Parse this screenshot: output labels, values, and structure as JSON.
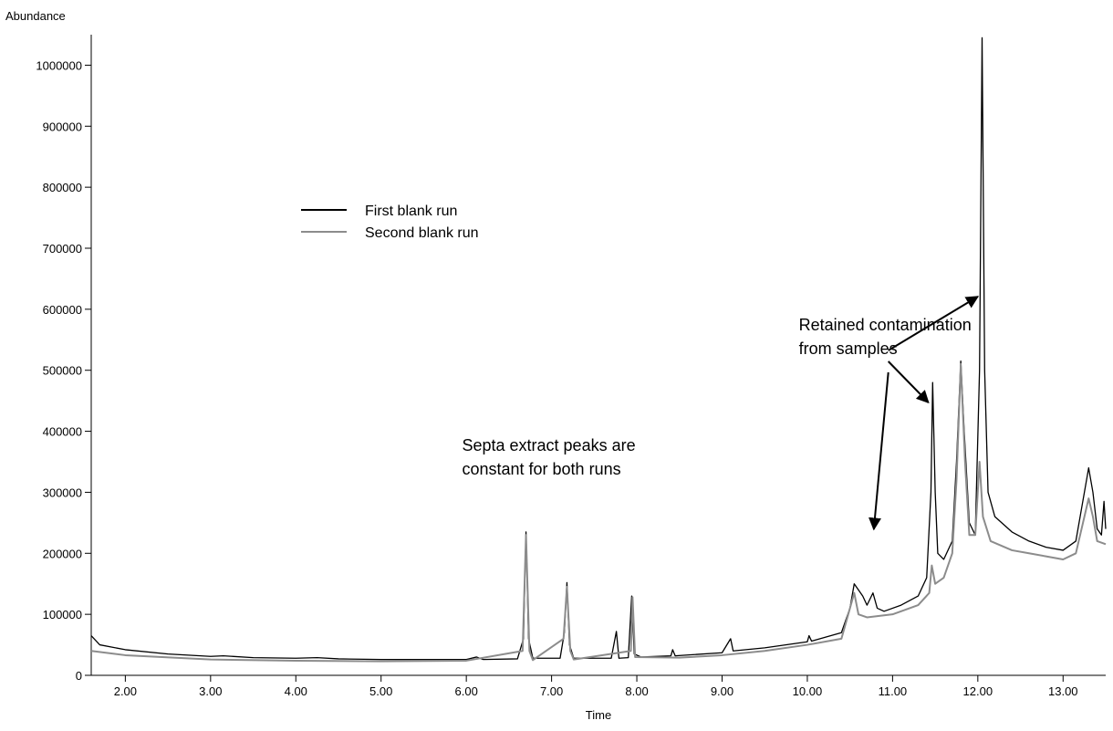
{
  "chart_data": {
    "type": "line",
    "y_label": "Abundance",
    "x_label": "Time",
    "xlim": [
      1.6,
      13.5
    ],
    "ylim": [
      0,
      1050000
    ],
    "xticks": [
      {
        "value": 2,
        "label": "2.00"
      },
      {
        "value": 3,
        "label": "3.00"
      },
      {
        "value": 4,
        "label": "4.00"
      },
      {
        "value": 5,
        "label": "5.00"
      },
      {
        "value": 6,
        "label": "6.00"
      },
      {
        "value": 7,
        "label": "7.00"
      },
      {
        "value": 8,
        "label": "8.00"
      },
      {
        "value": 9,
        "label": "9.00"
      },
      {
        "value": 10,
        "label": "10.00"
      },
      {
        "value": 11,
        "label": "11.00"
      },
      {
        "value": 12,
        "label": "12.00"
      },
      {
        "value": 13,
        "label": "13.00"
      }
    ],
    "yticks": [
      0,
      100000,
      200000,
      300000,
      400000,
      500000,
      600000,
      700000,
      800000,
      900000,
      1000000
    ],
    "grid": false,
    "annotations": [
      [
        "Retained contamination",
        "from samples"
      ],
      [
        "Septa extract peaks are",
        "constant for both runs"
      ]
    ],
    "series": [
      {
        "name": "First blank run",
        "color": "#000000",
        "x": [
          1.6,
          1.7,
          2.0,
          2.5,
          3.0,
          3.15,
          3.5,
          4.0,
          4.25,
          4.5,
          5.0,
          5.5,
          6.0,
          6.12,
          6.2,
          6.6,
          6.67,
          6.7,
          6.73,
          6.78,
          7.1,
          7.15,
          7.18,
          7.21,
          7.26,
          7.7,
          7.76,
          7.79,
          7.9,
          7.94,
          7.97,
          8.05,
          8.4,
          8.42,
          8.45,
          9.0,
          9.1,
          9.13,
          9.5,
          10.0,
          10.02,
          10.05,
          10.4,
          10.5,
          10.55,
          10.65,
          10.7,
          10.77,
          10.82,
          10.9,
          11.1,
          11.3,
          11.4,
          11.45,
          11.47,
          11.5,
          11.53,
          11.6,
          11.7,
          11.75,
          11.8,
          11.84,
          11.9,
          11.97,
          12.02,
          12.05,
          12.08,
          12.12,
          12.2,
          12.4,
          12.6,
          12.8,
          13.0,
          13.15,
          13.25,
          13.3,
          13.35,
          13.4,
          13.45,
          13.48,
          13.5
        ],
        "values": [
          65000,
          50000,
          42000,
          35000,
          31000,
          32000,
          29000,
          28000,
          29000,
          27000,
          26000,
          26000,
          26000,
          30000,
          26000,
          27000,
          60000,
          235000,
          60000,
          28000,
          28000,
          70000,
          152000,
          50000,
          28000,
          28000,
          72000,
          28000,
          29000,
          130000,
          35000,
          30000,
          32000,
          42000,
          32000,
          37000,
          60000,
          40000,
          45000,
          55000,
          65000,
          56000,
          70000,
          110000,
          150000,
          130000,
          115000,
          135000,
          110000,
          105000,
          115000,
          130000,
          160000,
          300000,
          480000,
          300000,
          200000,
          190000,
          220000,
          350000,
          515000,
          400000,
          250000,
          230000,
          500000,
          1045000,
          500000,
          300000,
          260000,
          235000,
          220000,
          210000,
          205000,
          220000,
          300000,
          340000,
          300000,
          240000,
          230000,
          285000,
          240000
        ]
      },
      {
        "name": "Second blank run",
        "color": "#8c8c8c",
        "x": [
          1.6,
          2.0,
          3.0,
          4.0,
          5.0,
          6.0,
          6.66,
          6.7,
          6.74,
          6.78,
          7.14,
          7.18,
          7.22,
          7.26,
          7.93,
          7.95,
          7.98,
          8.5,
          9.0,
          9.5,
          10.0,
          10.4,
          10.5,
          10.55,
          10.6,
          10.7,
          11.0,
          11.3,
          11.43,
          11.46,
          11.5,
          11.6,
          11.7,
          11.75,
          11.8,
          11.85,
          11.9,
          11.97,
          12.02,
          12.06,
          12.15,
          12.4,
          12.6,
          12.8,
          13.0,
          13.15,
          13.25,
          13.3,
          13.35,
          13.4,
          13.5
        ],
        "values": [
          40000,
          33000,
          26000,
          24000,
          23000,
          24000,
          40000,
          230000,
          40000,
          25000,
          60000,
          145000,
          40000,
          26000,
          40000,
          128000,
          30000,
          29000,
          33000,
          40000,
          50000,
          60000,
          110000,
          135000,
          100000,
          95000,
          100000,
          115000,
          135000,
          180000,
          150000,
          160000,
          200000,
          320000,
          510000,
          350000,
          230000,
          230000,
          350000,
          260000,
          220000,
          205000,
          200000,
          195000,
          190000,
          200000,
          260000,
          290000,
          260000,
          220000,
          215000
        ]
      }
    ]
  }
}
